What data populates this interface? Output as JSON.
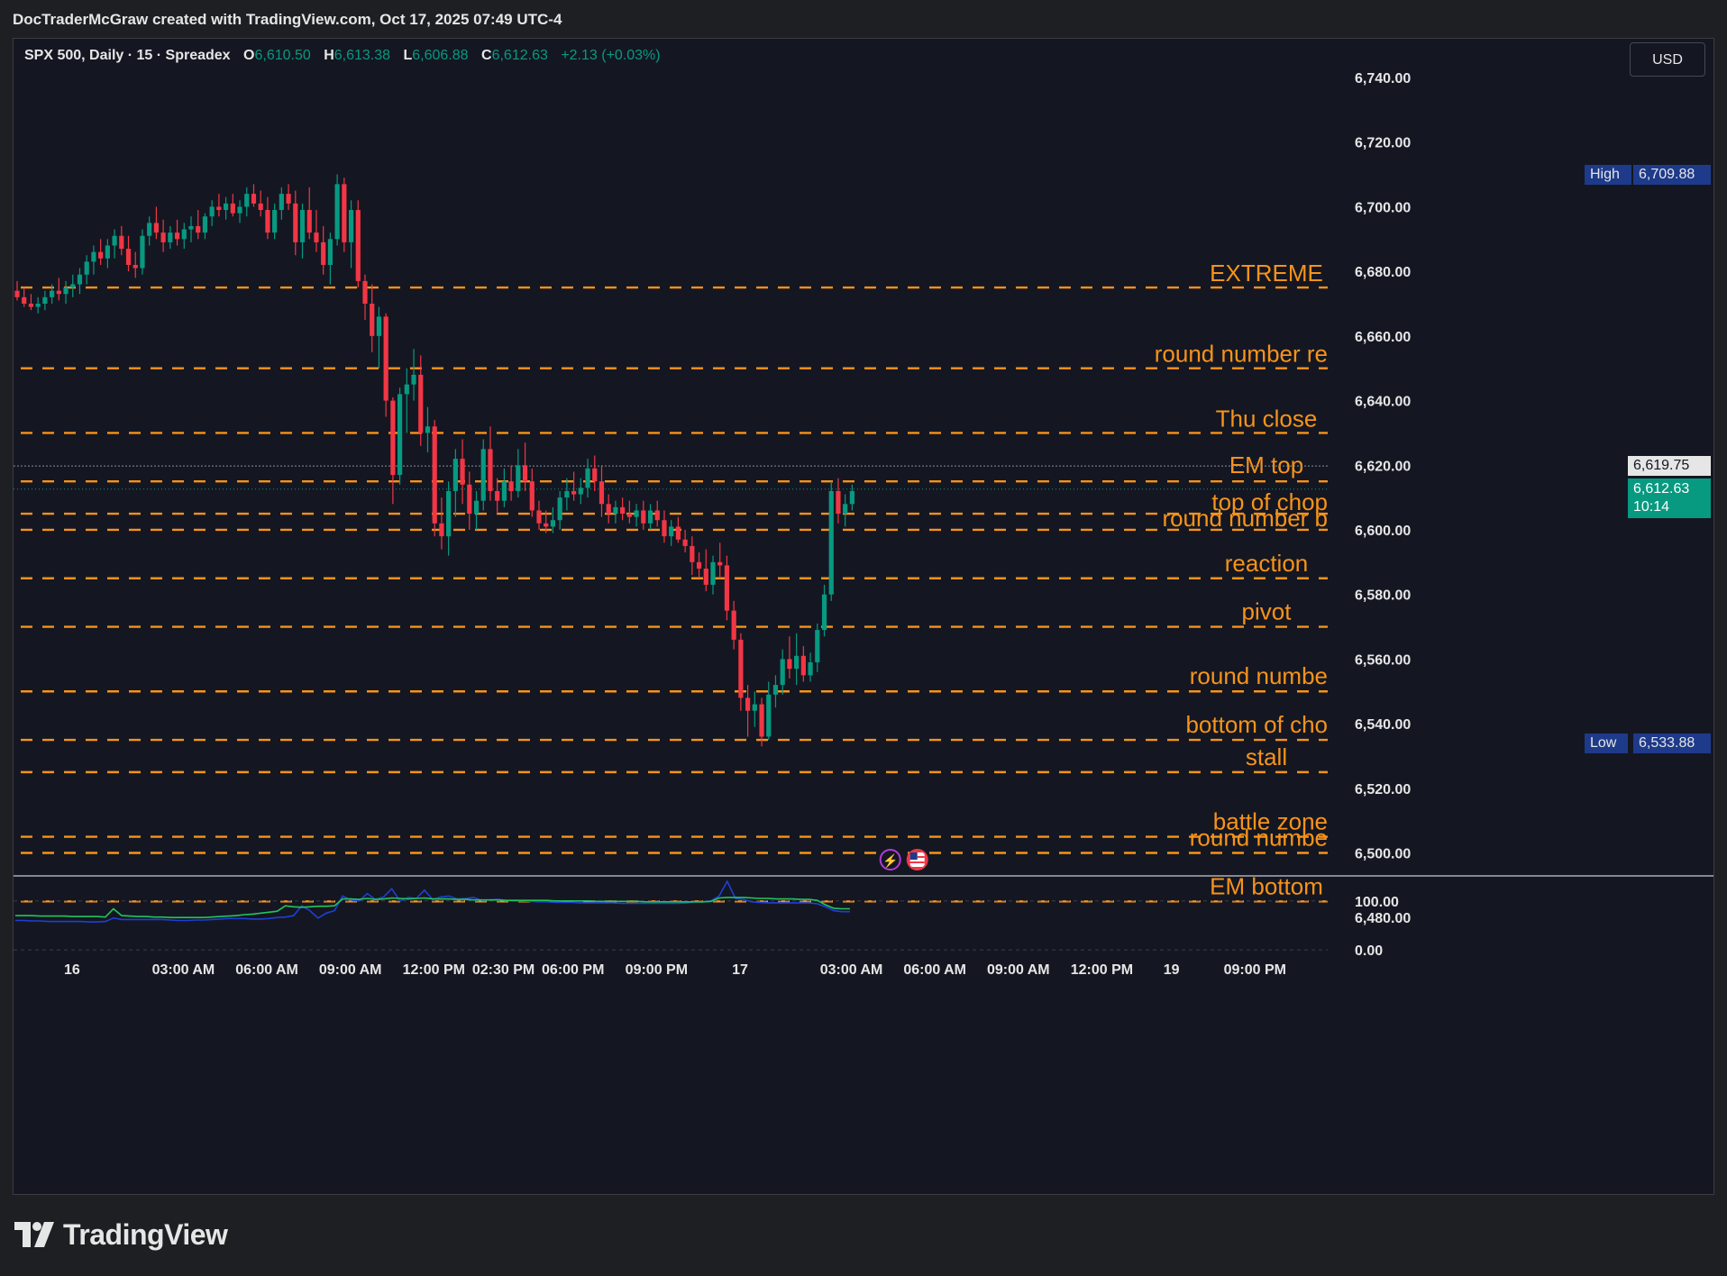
{
  "header": {
    "title": "DocTraderMcGraw created with TradingView.com, Oct 17, 2025 07:49 UTC-4"
  },
  "legend": {
    "symbol": "SPX 500, Daily · 15 · Spreadex",
    "o_label": "O",
    "o_value": "6,610.50",
    "h_label": "H",
    "h_value": "6,613.38",
    "l_label": "L",
    "l_value": "6,606.88",
    "c_label": "C",
    "c_value": "6,612.63",
    "change": "+2.13 (+0.03%)"
  },
  "currency": "USD",
  "branding": {
    "wordmark": "TradingView",
    "logo_icon": "tradingview-logo-icon"
  },
  "price_tags": {
    "high_label": "High",
    "high_value": "6,709.88",
    "low_label": "Low",
    "low_value": "6,533.88",
    "line_value": "6,619.75",
    "last_value": "6,612.63",
    "countdown": "10:14"
  },
  "colors": {
    "background": "#141722",
    "up": "#089981",
    "down": "#f23645",
    "level": "#f7931a",
    "tag_blue": "#1e3a8a",
    "ind_blue": "#1f3fd6",
    "ind_green": "#22c55e"
  },
  "event_icons": [
    "lightning-icon",
    "us-flag-icon"
  ],
  "chart_data": {
    "type": "candlestick",
    "title": "SPX 500, Daily · 15 · Spreadex",
    "ylim": [
      6465,
      6752
    ],
    "y_ticks": [
      "6,740.00",
      "6,720.00",
      "6,700.00",
      "6,680.00",
      "6,660.00",
      "6,640.00",
      "6,620.00",
      "6,600.00",
      "6,580.00",
      "6,560.00",
      "6,540.00",
      "6,520.00",
      "6,500.00",
      "6,480.00"
    ],
    "y_tick_values": [
      6740,
      6720,
      6700,
      6680,
      6660,
      6640,
      6620,
      6600,
      6580,
      6560,
      6540,
      6520,
      6500,
      6480
    ],
    "x_ticks": [
      "16",
      "03:00 AM",
      "06:00 AM",
      "09:00 AM",
      "12:00 PM",
      "02:30 PM",
      "06:00 PM",
      "09:00 PM",
      "17",
      "03:00 AM",
      "06:00 AM",
      "09:00 AM",
      "12:00 PM",
      "19",
      "09:00 PM"
    ],
    "x_tick_bars": [
      4,
      20,
      32,
      44,
      56,
      66,
      76,
      88,
      100,
      116,
      128,
      140,
      152,
      162,
      174
    ],
    "grid": false,
    "levels": [
      {
        "label": "EXTREME",
        "price": 6675
      },
      {
        "label": "round number re",
        "price": 6650
      },
      {
        "label": "Thu close",
        "price": 6630
      },
      {
        "label": "EM top",
        "price": 6615
      },
      {
        "label": "top of chop",
        "price": 6605
      },
      {
        "label": "round number b",
        "price": 6600
      },
      {
        "label": "reaction",
        "price": 6585
      },
      {
        "label": "pivot",
        "price": 6570
      },
      {
        "label": "round numbe",
        "price": 6550
      },
      {
        "label": "bottom of cho",
        "price": 6535
      },
      {
        "label": "stall",
        "price": 6525
      },
      {
        "label": "battle zone",
        "price": 6505
      },
      {
        "label": "round numbe",
        "price": 6500
      },
      {
        "label": "EM bottom",
        "price": 6485
      }
    ],
    "candles": [
      [
        6674,
        6677,
        6671,
        6672
      ],
      [
        6672,
        6675,
        6669,
        6670
      ],
      [
        6670,
        6673,
        6668,
        6669
      ],
      [
        6669,
        6672,
        6667,
        6670
      ],
      [
        6670,
        6674,
        6668,
        6672
      ],
      [
        6672,
        6676,
        6670,
        6674
      ],
      [
        6674,
        6678,
        6671,
        6673
      ],
      [
        6673,
        6677,
        6670,
        6675
      ],
      [
        6675,
        6679,
        6672,
        6676
      ],
      [
        6676,
        6681,
        6673,
        6679
      ],
      [
        6679,
        6685,
        6676,
        6683
      ],
      [
        6683,
        6688,
        6679,
        6686
      ],
      [
        6686,
        6690,
        6682,
        6684
      ],
      [
        6684,
        6690,
        6681,
        6688
      ],
      [
        6688,
        6693,
        6684,
        6691
      ],
      [
        6691,
        6694,
        6685,
        6687
      ],
      [
        6687,
        6691,
        6680,
        6682
      ],
      [
        6682,
        6686,
        6678,
        6681
      ],
      [
        6681,
        6693,
        6679,
        6691
      ],
      [
        6691,
        6697,
        6688,
        6695
      ],
      [
        6695,
        6700,
        6690,
        6692
      ],
      [
        6692,
        6696,
        6686,
        6689
      ],
      [
        6689,
        6694,
        6687,
        6692
      ],
      [
        6692,
        6696,
        6688,
        6690
      ],
      [
        6690,
        6695,
        6687,
        6693
      ],
      [
        6693,
        6697,
        6689,
        6694
      ],
      [
        6694,
        6699,
        6690,
        6692
      ],
      [
        6692,
        6698,
        6690,
        6697
      ],
      [
        6697,
        6702,
        6694,
        6700
      ],
      [
        6700,
        6704,
        6697,
        6699
      ],
      [
        6699,
        6703,
        6696,
        6701
      ],
      [
        6701,
        6704,
        6697,
        6698
      ],
      [
        6698,
        6702,
        6695,
        6700
      ],
      [
        6700,
        6706,
        6697,
        6704
      ],
      [
        6704,
        6707,
        6700,
        6701
      ],
      [
        6701,
        6705,
        6697,
        6699
      ],
      [
        6699,
        6703,
        6690,
        6692
      ],
      [
        6692,
        6701,
        6690,
        6699
      ],
      [
        6699,
        6706,
        6696,
        6704
      ],
      [
        6704,
        6707,
        6699,
        6701
      ],
      [
        6701,
        6705,
        6685,
        6689
      ],
      [
        6689,
        6701,
        6684,
        6699
      ],
      [
        6699,
        6706,
        6690,
        6692
      ],
      [
        6692,
        6699,
        6686,
        6689
      ],
      [
        6689,
        6694,
        6679,
        6682
      ],
      [
        6682,
        6692,
        6676,
        6690
      ],
      [
        6690,
        6710,
        6688,
        6707
      ],
      [
        6707,
        6709,
        6686,
        6689
      ],
      [
        6689,
        6702,
        6681,
        6699
      ],
      [
        6699,
        6702,
        6675,
        6677
      ],
      [
        6677,
        6679,
        6665,
        6670
      ],
      [
        6670,
        6676,
        6655,
        6660
      ],
      [
        6660,
        6669,
        6650,
        6666
      ],
      [
        6666,
        6667,
        6635,
        6640
      ],
      [
        6640,
        6641,
        6608,
        6617
      ],
      [
        6617,
        6644,
        6614,
        6642
      ],
      [
        6642,
        6650,
        6630,
        6645
      ],
      [
        6645,
        6656,
        6640,
        6648
      ],
      [
        6648,
        6654,
        6626,
        6630
      ],
      [
        6630,
        6638,
        6624,
        6632
      ],
      [
        6632,
        6634,
        6598,
        6602
      ],
      [
        6602,
        6610,
        6594,
        6598
      ],
      [
        6598,
        6615,
        6592,
        6612
      ],
      [
        6612,
        6625,
        6604,
        6622
      ],
      [
        6622,
        6628,
        6608,
        6614
      ],
      [
        6614,
        6618,
        6600,
        6605
      ],
      [
        6605,
        6612,
        6600,
        6609
      ],
      [
        6609,
        6628,
        6606,
        6625
      ],
      [
        6625,
        6632,
        6609,
        6612
      ],
      [
        6612,
        6616,
        6605,
        6609
      ],
      [
        6609,
        6619,
        6607,
        6615
      ],
      [
        6615,
        6620,
        6609,
        6612
      ],
      [
        6612,
        6625,
        6610,
        6620
      ],
      [
        6620,
        6627,
        6612,
        6615
      ],
      [
        6615,
        6619,
        6604,
        6606
      ],
      [
        6606,
        6609,
        6600,
        6602
      ],
      [
        6602,
        6606,
        6599,
        6601
      ],
      [
        6601,
        6607,
        6599,
        6603
      ],
      [
        6603,
        6612,
        6600,
        6610
      ],
      [
        6610,
        6616,
        6606,
        6612
      ],
      [
        6612,
        6618,
        6609,
        6611
      ],
      [
        6611,
        6616,
        6608,
        6613
      ],
      [
        6613,
        6622,
        6610,
        6619
      ],
      [
        6619,
        6623,
        6612,
        6615
      ],
      [
        6615,
        6620,
        6604,
        6608
      ],
      [
        6608,
        6611,
        6602,
        6605
      ],
      [
        6605,
        6609,
        6602,
        6607
      ],
      [
        6607,
        6610,
        6603,
        6605
      ],
      [
        6605,
        6609,
        6602,
        6604
      ],
      [
        6604,
        6608,
        6601,
        6606
      ],
      [
        6606,
        6609,
        6600,
        6602
      ],
      [
        6602,
        6608,
        6600,
        6606
      ],
      [
        6606,
        6609,
        6601,
        6603
      ],
      [
        6603,
        6606,
        6596,
        6598
      ],
      [
        6598,
        6603,
        6595,
        6601
      ],
      [
        6601,
        6604,
        6596,
        6597
      ],
      [
        6597,
        6600,
        6593,
        6595
      ],
      [
        6595,
        6598,
        6586,
        6590
      ],
      [
        6590,
        6593,
        6585,
        6588
      ],
      [
        6588,
        6594,
        6581,
        6583
      ],
      [
        6583,
        6592,
        6580,
        6590
      ],
      [
        6590,
        6596,
        6585,
        6589
      ],
      [
        6589,
        6592,
        6572,
        6575
      ],
      [
        6575,
        6578,
        6563,
        6566
      ],
      [
        6566,
        6568,
        6544,
        6548
      ],
      [
        6548,
        6552,
        6536,
        6544
      ],
      [
        6544,
        6550,
        6539,
        6546
      ],
      [
        6546,
        6548,
        6533,
        6536
      ],
      [
        6536,
        6553,
        6535,
        6549
      ],
      [
        6549,
        6555,
        6545,
        6552
      ],
      [
        6552,
        6563,
        6549,
        6560
      ],
      [
        6560,
        6567,
        6554,
        6557
      ],
      [
        6557,
        6568,
        6552,
        6561
      ],
      [
        6561,
        6564,
        6553,
        6555
      ],
      [
        6555,
        6562,
        6553,
        6559
      ],
      [
        6559,
        6571,
        6556,
        6569
      ],
      [
        6569,
        6583,
        6567,
        6580
      ],
      [
        6580,
        6615,
        6578,
        6612
      ],
      [
        6612,
        6616,
        6602,
        6605
      ],
      [
        6605,
        6611,
        6601,
        6608
      ],
      [
        6608,
        6614,
        6606,
        6612
      ]
    ],
    "indicator": {
      "y_ticks": [
        "100.00",
        "0.00"
      ],
      "y_tick_values": [
        100,
        0
      ],
      "ylim": [
        -20,
        140
      ],
      "blue": [
        60,
        60,
        59,
        59,
        58,
        58,
        58,
        58,
        58,
        57,
        57,
        58,
        65,
        62,
        62,
        62,
        62,
        62,
        62,
        61,
        60,
        60,
        61,
        61,
        62,
        63,
        64,
        64,
        64,
        63,
        63,
        64,
        66,
        67,
        70,
        90,
        80,
        65,
        75,
        80,
        110,
        102,
        100,
        115,
        103,
        108,
        125,
        100,
        107,
        105,
        122,
        103,
        108,
        110,
        104,
        105,
        107,
        101,
        102,
        103,
        101,
        100,
        100,
        99,
        98,
        98,
        97,
        97,
        97,
        96,
        96,
        96,
        96,
        96,
        95,
        95,
        95,
        95,
        95,
        95,
        95,
        95,
        96,
        98,
        98,
        100,
        110,
        140,
        105,
        103,
        98,
        97,
        96,
        96,
        96,
        96,
        96,
        96,
        94,
        88,
        80,
        78,
        78
      ],
      "green": [
        70,
        70,
        70,
        69,
        69,
        69,
        69,
        68,
        68,
        68,
        68,
        67,
        84,
        70,
        69,
        68,
        68,
        67,
        67,
        66,
        66,
        66,
        66,
        66,
        67,
        68,
        69,
        70,
        72,
        73,
        75,
        77,
        79,
        90,
        88,
        87,
        88,
        89,
        89,
        90,
        104,
        104,
        103,
        105,
        103,
        104,
        106,
        105,
        104,
        105,
        106,
        104,
        104,
        104,
        103,
        103,
        102,
        102,
        102,
        102,
        101,
        101,
        101,
        101,
        101,
        101,
        100,
        100,
        100,
        100,
        100,
        99,
        99,
        99,
        99,
        99,
        99,
        98,
        98,
        98,
        98,
        98,
        98,
        98,
        98,
        99,
        106,
        107,
        107,
        107,
        106,
        105,
        105,
        104,
        104,
        104,
        103,
        103,
        101,
        92,
        85,
        84,
        84
      ]
    }
  }
}
